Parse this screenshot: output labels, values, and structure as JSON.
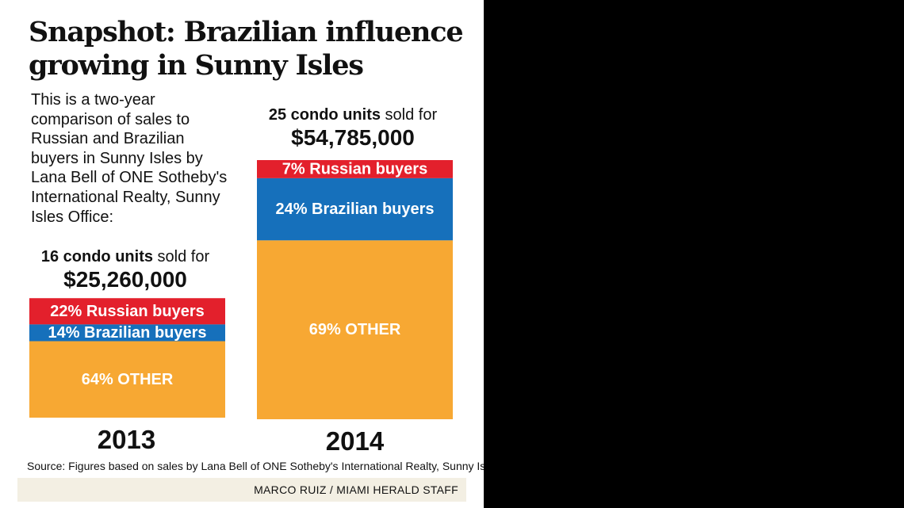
{
  "title": "Snapshot: Brazilian influence growing in Sunny Isles",
  "intro": "This is a two-year comparison of sales to Russian and Brazilian buyers in Sunny Isles by Lana Bell of ONE Sotheby's International Realty, Sunny Isles Office:",
  "source": "Source: Figures based on sales by Lana Bell of ONE Sotheby's International Realty, Sunny Isles Office",
  "credit": "MARCO RUIZ / MIAMI HERALD STAFF",
  "colors": {
    "russian": "#e3202c",
    "brazilian": "#1670bb",
    "other": "#f7a833",
    "background": "#000000",
    "panel": "#ffffff",
    "credit_bar": "#f3efe3"
  },
  "chart_data": {
    "type": "bar",
    "stacked": true,
    "title": "Snapshot: Brazilian influence growing in Sunny Isles",
    "categories": [
      "2013",
      "2014"
    ],
    "units": [
      "16",
      "25"
    ],
    "units_text": [
      "16 condo units",
      "25 condo units"
    ],
    "sold_for_text": " sold for",
    "amounts": [
      "$25,260,000",
      "$54,785,000"
    ],
    "amount_values": [
      25260000,
      54785000
    ],
    "series": [
      {
        "name": "Russian buyers",
        "values": [
          22,
          7
        ],
        "labels": [
          "22% Russian buyers",
          "7% Russian buyers"
        ]
      },
      {
        "name": "Brazilian  buyers",
        "values": [
          14,
          24
        ],
        "labels": [
          "14% Brazilian  buyers",
          "24% Brazilian  buyers"
        ]
      },
      {
        "name": "OTHER",
        "values": [
          64,
          69
        ],
        "labels": [
          "64% OTHER",
          "69% OTHER"
        ]
      }
    ],
    "value_unit": "%",
    "bar_height_proportional_to": "amount_values",
    "grid": false,
    "legend": "none"
  }
}
